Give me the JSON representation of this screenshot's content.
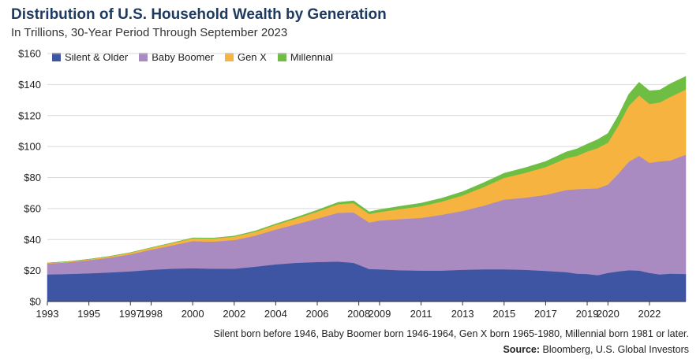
{
  "header": {
    "title": "Distribution of U.S. Household Wealth by Generation",
    "subtitle": "In Trillions, 30-Year Period Through September 2023"
  },
  "footer": {
    "footnote": "Silent born before 1946, Baby Boomer born 1946-1964, Gen X born 1965-1980, Millennial born 1981 or later.",
    "source_label": "Source:",
    "source_text": "Bloomberg, U.S. Global Investors"
  },
  "chart_data": {
    "type": "area",
    "stacked": true,
    "title": "Distribution of U.S. Household Wealth by Generation",
    "subtitle": "In Trillions, 30-Year Period Through September 2023",
    "xlabel": "",
    "ylabel": "",
    "ylim": [
      0,
      160
    ],
    "xlim": [
      1993,
      2023.75
    ],
    "grid": true,
    "legend": "top-left",
    "y_ticks": [
      0,
      20,
      40,
      60,
      80,
      100,
      120,
      140,
      160
    ],
    "y_tick_labels": [
      "$0",
      "$20",
      "$40",
      "$60",
      "$80",
      "$100",
      "$120",
      "$140",
      "$160"
    ],
    "x_ticks": [
      1993,
      1995,
      1997,
      1998,
      2000,
      2002,
      2004,
      2006,
      2008,
      2009,
      2011,
      2013,
      2015,
      2017,
      2019,
      2020,
      2022
    ],
    "x": [
      1993,
      1994,
      1995,
      1996,
      1997,
      1998,
      1999,
      2000,
      2001,
      2002,
      2003,
      2004,
      2005,
      2006,
      2007,
      2007.75,
      2008.5,
      2009,
      2010,
      2011,
      2012,
      2013,
      2014,
      2015,
      2016,
      2017,
      2018,
      2018.5,
      2019,
      2019.5,
      2020,
      2020.5,
      2021,
      2021.5,
      2022,
      2022.5,
      2023,
      2023.75
    ],
    "series": [
      {
        "name": "Silent & Older",
        "color": "#3e55a3",
        "values": [
          17.5,
          17.8,
          18.2,
          18.8,
          19.5,
          20.5,
          21.2,
          21.5,
          21.2,
          21.2,
          22.5,
          24,
          25,
          25.5,
          25.8,
          25,
          21,
          20.8,
          20.2,
          20,
          20,
          20.5,
          20.8,
          20.8,
          20.5,
          19.8,
          19,
          18,
          17.8,
          17,
          18.5,
          19.5,
          20.2,
          20,
          18.5,
          17.5,
          18,
          17.8
        ]
      },
      {
        "name": "Baby Boomer",
        "color": "#a98bc2",
        "values": [
          7,
          7.5,
          8.5,
          9.5,
          11,
          13,
          15,
          17.5,
          17.5,
          18.5,
          20,
          22.5,
          25,
          28,
          31.5,
          32.5,
          30,
          31.5,
          33,
          34,
          36,
          38,
          41,
          45,
          46.5,
          49,
          53,
          54.5,
          55,
          56,
          57,
          63,
          70,
          74,
          71,
          73,
          73,
          77
        ]
      },
      {
        "name": "Gen X",
        "color": "#f6b340",
        "values": [
          0.4,
          0.5,
          0.6,
          0.8,
          1,
          1.2,
          1.5,
          1.8,
          2,
          2.2,
          2.5,
          3,
          3.6,
          4.5,
          5.5,
          6,
          5.5,
          5.5,
          6.5,
          7.5,
          8.5,
          10,
          12,
          14,
          16,
          18,
          20.5,
          21.5,
          24,
          26,
          27,
          31,
          36,
          39,
          38,
          38,
          41,
          42
        ]
      },
      {
        "name": "Millennial",
        "color": "#6fbe44",
        "values": [
          0,
          0,
          0,
          0.1,
          0.1,
          0.1,
          0.2,
          0.3,
          0.3,
          0.4,
          0.5,
          0.6,
          0.8,
          1,
          1.2,
          1.5,
          1.4,
          1.5,
          1.8,
          2,
          2.2,
          2.4,
          2.8,
          3,
          3.3,
          3.6,
          4.1,
          4.5,
          4.8,
          5.5,
          6,
          6.5,
          7.5,
          8.5,
          8.5,
          8,
          8.5,
          8.5
        ]
      }
    ]
  }
}
